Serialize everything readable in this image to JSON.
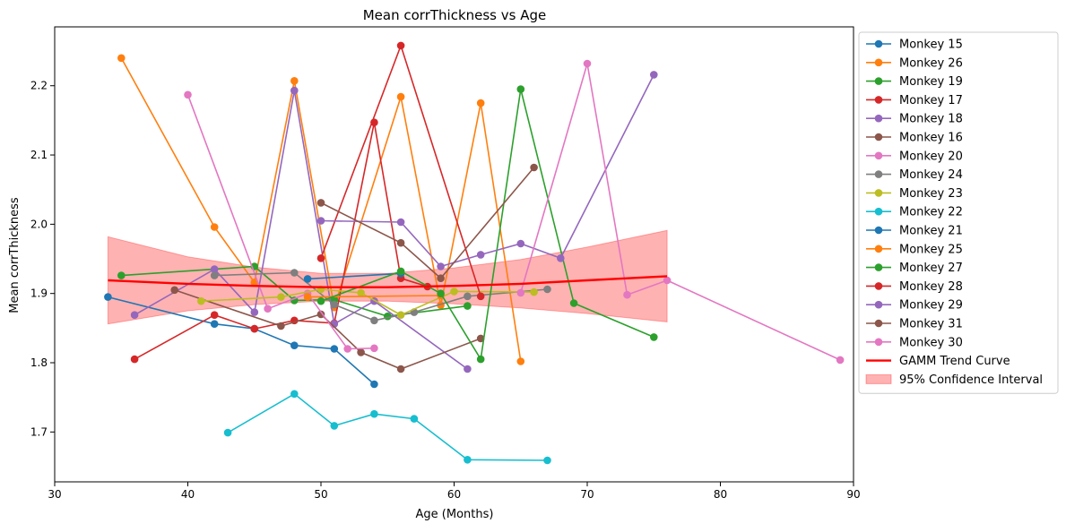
{
  "chart_data": {
    "type": "line",
    "title": "Mean corrThickness vs Age",
    "xlabel": "Age (Months)",
    "ylabel": "Mean corrThickness",
    "xlim": [
      30,
      90
    ],
    "ylim": [
      1.628,
      2.285
    ],
    "xticks": [
      30,
      40,
      50,
      60,
      70,
      80,
      90
    ],
    "yticks": [
      1.7,
      1.8,
      1.9,
      2.0,
      2.1,
      2.2
    ],
    "grid": false,
    "legend_position": "upper-right-outside",
    "series": [
      {
        "name": "Monkey 15",
        "color": "#1f77b4",
        "points": [
          [
            34,
            1.895
          ],
          [
            42,
            1.856
          ],
          [
            45,
            1.849
          ],
          [
            48,
            1.825
          ],
          [
            51,
            1.82
          ],
          [
            54,
            1.769
          ]
        ]
      },
      {
        "name": "Monkey 26",
        "color": "#ff7f0e",
        "points": [
          [
            35,
            2.24
          ],
          [
            42,
            1.996
          ],
          [
            45,
            1.916
          ],
          [
            48,
            2.207
          ],
          [
            51,
            1.88
          ],
          [
            56,
            2.184
          ],
          [
            59,
            1.883
          ],
          [
            62,
            2.175
          ],
          [
            65,
            1.802
          ]
        ]
      },
      {
        "name": "Monkey 19",
        "color": "#2ca02c",
        "points": [
          [
            35,
            1.926
          ],
          [
            45,
            1.939
          ],
          [
            48,
            1.89
          ],
          [
            51,
            1.891
          ],
          [
            55,
            1.867
          ],
          [
            61,
            1.882
          ]
        ]
      },
      {
        "name": "Monkey 17",
        "color": "#d62728",
        "points": [
          [
            36,
            1.805
          ],
          [
            42,
            1.869
          ],
          [
            45,
            1.849
          ],
          [
            48,
            1.861
          ],
          [
            51,
            1.857
          ],
          [
            54,
            2.147
          ],
          [
            56,
            1.922
          ],
          [
            58,
            1.91
          ]
        ]
      },
      {
        "name": "Monkey 18",
        "color": "#9467bd",
        "points": [
          [
            36,
            1.869
          ],
          [
            42,
            1.935
          ],
          [
            45,
            1.873
          ],
          [
            48,
            2.193
          ],
          [
            51,
            1.856
          ],
          [
            54,
            1.889
          ],
          [
            61,
            1.791
          ]
        ]
      },
      {
        "name": "Monkey 16",
        "color": "#8c564b",
        "points": [
          [
            39,
            1.905
          ],
          [
            47,
            1.853
          ],
          [
            50,
            1.87
          ],
          [
            53,
            1.815
          ],
          [
            56,
            1.791
          ],
          [
            62,
            1.835
          ]
        ]
      },
      {
        "name": "Monkey 20",
        "color": "#e377c2",
        "points": [
          [
            40,
            2.187
          ],
          [
            46,
            1.878
          ],
          [
            49,
            1.9
          ],
          [
            52,
            1.82
          ],
          [
            54,
            1.821
          ]
        ]
      },
      {
        "name": "Monkey 24",
        "color": "#7f7f7f",
        "points": [
          [
            42,
            1.926
          ],
          [
            48,
            1.93
          ],
          [
            51,
            1.884
          ],
          [
            54,
            1.861
          ],
          [
            57,
            1.873
          ],
          [
            61,
            1.896
          ],
          [
            67,
            1.906
          ]
        ]
      },
      {
        "name": "Monkey 23",
        "color": "#bcbd22",
        "points": [
          [
            41,
            1.889
          ],
          [
            47,
            1.895
          ],
          [
            50,
            1.906
          ],
          [
            53,
            1.901
          ],
          [
            56,
            1.869
          ],
          [
            60,
            1.903
          ],
          [
            66,
            1.902
          ]
        ]
      },
      {
        "name": "Monkey 22",
        "color": "#17becf",
        "points": [
          [
            43,
            1.699
          ],
          [
            48,
            1.755
          ],
          [
            51,
            1.709
          ],
          [
            54,
            1.726
          ],
          [
            57,
            1.719
          ],
          [
            61,
            1.66
          ],
          [
            67,
            1.659
          ]
        ]
      },
      {
        "name": "Monkey 21",
        "color": "#1f77b4",
        "points": [
          [
            49,
            1.921
          ],
          [
            56,
            1.929
          ]
        ]
      },
      {
        "name": "Monkey 25",
        "color": "#ff7f0e",
        "points": [
          [
            49,
            1.895
          ],
          [
            59,
            1.897
          ]
        ]
      },
      {
        "name": "Monkey 27",
        "color": "#2ca02c",
        "points": [
          [
            50,
            1.889
          ],
          [
            56,
            1.932
          ],
          [
            59,
            1.9
          ],
          [
            62,
            1.805
          ],
          [
            65,
            2.195
          ],
          [
            69,
            1.886
          ],
          [
            75,
            1.837
          ]
        ]
      },
      {
        "name": "Monkey 28",
        "color": "#d62728",
        "points": [
          [
            50,
            1.951
          ],
          [
            56,
            2.258
          ],
          [
            62,
            1.896
          ]
        ]
      },
      {
        "name": "Monkey 29",
        "color": "#9467bd",
        "points": [
          [
            50,
            2.005
          ],
          [
            56,
            2.003
          ],
          [
            59,
            1.939
          ],
          [
            62,
            1.956
          ],
          [
            65,
            1.972
          ],
          [
            68,
            1.951
          ],
          [
            75,
            2.216
          ]
        ]
      },
      {
        "name": "Monkey 31",
        "color": "#8c564b",
        "points": [
          [
            50,
            2.031
          ],
          [
            56,
            1.973
          ],
          [
            59,
            1.922
          ],
          [
            66,
            2.082
          ]
        ]
      },
      {
        "name": "Monkey 30",
        "color": "#e377c2",
        "points": [
          [
            65,
            1.901
          ],
          [
            70,
            2.232
          ],
          [
            73,
            1.898
          ],
          [
            76,
            1.919
          ],
          [
            89,
            1.804
          ]
        ]
      }
    ],
    "trend": {
      "name": "GAMM Trend Curve",
      "color": "#ff0000",
      "x": [
        34,
        40,
        45,
        50,
        55,
        60,
        65,
        70,
        76
      ],
      "y": [
        1.919,
        1.914,
        1.911,
        1.909,
        1.909,
        1.911,
        1.914,
        1.919,
        1.925
      ]
    },
    "confidence_interval": {
      "name": "95% Confidence Interval",
      "color": "#ff0000",
      "x": [
        34,
        40,
        45,
        50,
        55,
        60,
        65,
        70,
        76
      ],
      "lower": [
        1.856,
        1.875,
        1.884,
        1.889,
        1.889,
        1.885,
        1.879,
        1.871,
        1.859
      ],
      "upper": [
        1.982,
        1.953,
        1.938,
        1.929,
        1.929,
        1.937,
        1.949,
        1.967,
        1.991
      ]
    }
  }
}
